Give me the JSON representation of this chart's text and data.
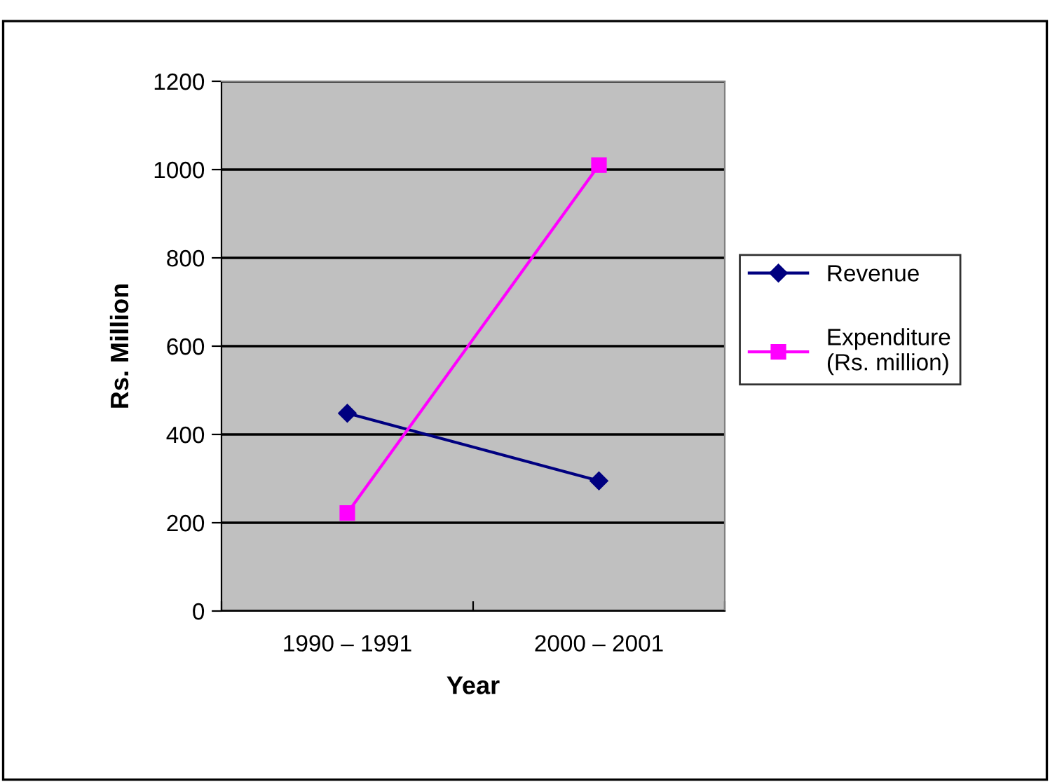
{
  "chart_data": {
    "type": "line",
    "xlabel": "Year",
    "ylabel": "Rs. Million",
    "categories": [
      "1990 – 1991",
      "2000 – 2001"
    ],
    "series": [
      {
        "name": "Revenue",
        "color": "#000080",
        "marker": "diamond",
        "values": [
          448,
          295
        ]
      },
      {
        "name": "Expenditure\n(Rs. million)",
        "color": "#ff00ff",
        "marker": "square",
        "values": [
          222,
          1010
        ]
      }
    ],
    "ylim": [
      0,
      1200
    ],
    "yticks": [
      0,
      200,
      400,
      600,
      800,
      1000,
      1200
    ],
    "grid": "y",
    "legend": "right"
  }
}
